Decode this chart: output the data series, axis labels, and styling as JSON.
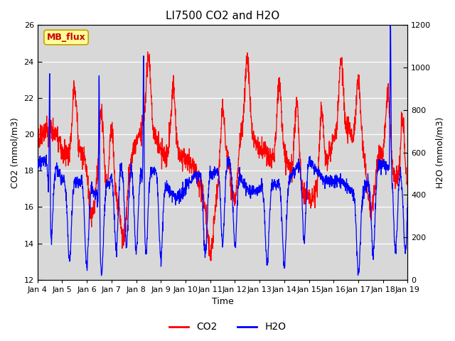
{
  "title": "LI7500 CO2 and H2O",
  "xlabel": "Time",
  "ylabel_left": "CO2 (mmol/m3)",
  "ylabel_right": "H2O (mmol/m3)",
  "ylim_left": [
    12,
    26
  ],
  "ylim_right": [
    0,
    1200
  ],
  "xtick_labels": [
    "Jan 4",
    "Jan 5",
    "Jan 6",
    "Jan 7",
    "Jan 8",
    "Jan 9",
    "Jan 10",
    "Jan 11",
    "Jan 12",
    "Jan 13",
    "Jan 14",
    "Jan 15",
    "Jan 16",
    "Jan 17",
    "Jan 18",
    "Jan 19"
  ],
  "legend_entries": [
    "CO2",
    "H2O"
  ],
  "co2_color": "#ff0000",
  "h2o_color": "#0000ff",
  "bg_color": "#ffffff",
  "plot_bg_color": "#d8d8d8",
  "annotation_text": "MB_flux",
  "annotation_bg": "#ffff99",
  "annotation_border": "#c8a000",
  "annotation_text_color": "#cc0000",
  "grid_color": "#ffffff",
  "title_fontsize": 11,
  "label_fontsize": 9,
  "tick_fontsize": 8,
  "legend_fontsize": 10,
  "n_points": 2000,
  "seed": 7
}
